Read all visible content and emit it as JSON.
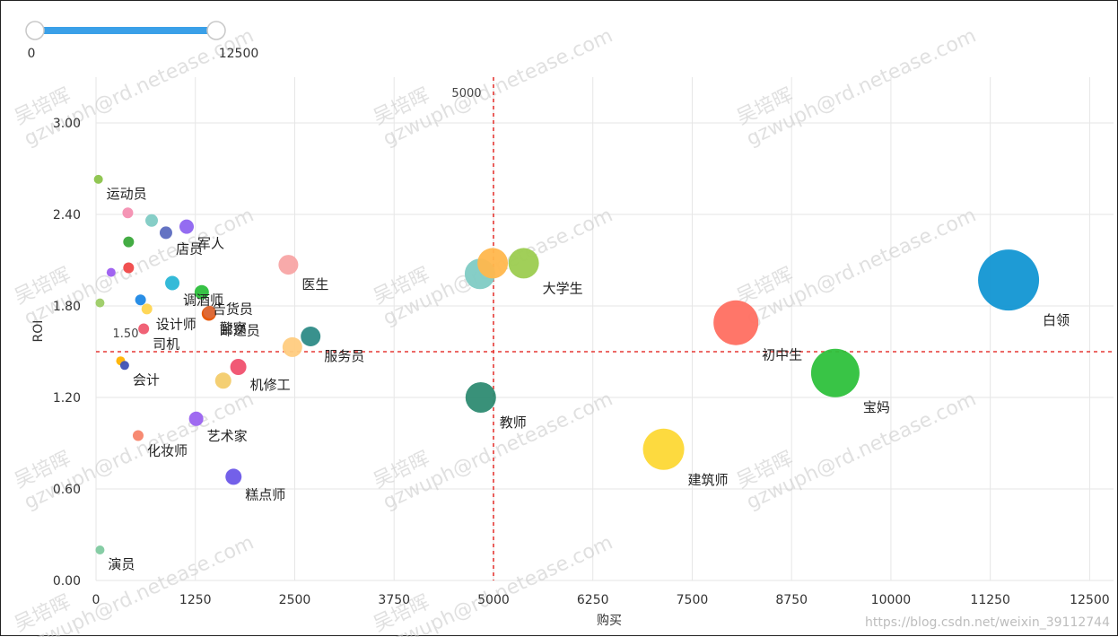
{
  "slider": {
    "min_label": "0",
    "max_label": "12500",
    "min": 0,
    "max": 12500,
    "low": 0,
    "high": 12500
  },
  "chart_data": {
    "type": "scatter",
    "title": "",
    "xlabel": "购买",
    "ylabel": "ROI",
    "xlim": [
      0,
      12800
    ],
    "ylim": [
      0,
      3.3
    ],
    "x_ticks": [
      0,
      1250,
      2500,
      3750,
      5000,
      6250,
      7500,
      8750,
      10000,
      11250,
      12500
    ],
    "y_ticks": [
      0.0,
      0.6,
      1.2,
      1.8,
      2.4,
      3.0
    ],
    "y_tick_labels": [
      "0.00",
      "0.60",
      "1.20",
      "1.80",
      "2.40",
      "3.00"
    ],
    "grid": true,
    "reference_lines": {
      "x": 5000,
      "x_label": "5000",
      "y": 1.5,
      "y_label": "1.50"
    },
    "points": [
      {
        "name": "运动员",
        "x": 30,
        "y": 2.63,
        "size": 5,
        "color": "#8bc34a",
        "labeled": true
      },
      {
        "name": "",
        "x": 400,
        "y": 2.41,
        "size": 6,
        "color": "#f48fb1",
        "labeled": false
      },
      {
        "name": "",
        "x": 700,
        "y": 2.36,
        "size": 7,
        "color": "#80cbc4",
        "labeled": false
      },
      {
        "name": "店员",
        "x": 880,
        "y": 2.28,
        "size": 7,
        "color": "#5c6bc0",
        "labeled": true
      },
      {
        "name": "军人",
        "x": 1140,
        "y": 2.32,
        "size": 8,
        "color": "#8e64f0",
        "labeled": true
      },
      {
        "name": "",
        "x": 410,
        "y": 2.22,
        "size": 6,
        "color": "#3aa83a",
        "labeled": false
      },
      {
        "name": "",
        "x": 410,
        "y": 2.05,
        "size": 6,
        "color": "#f04848",
        "labeled": false
      },
      {
        "name": "",
        "x": 190,
        "y": 2.02,
        "size": 5,
        "color": "#9c5cf0",
        "labeled": false
      },
      {
        "name": "调酒师",
        "x": 960,
        "y": 1.95,
        "size": 8,
        "color": "#29b6d6",
        "labeled": true
      },
      {
        "name": "告货员",
        "x": 1330,
        "y": 1.89,
        "size": 8,
        "color": "#2cbf3c",
        "labeled": true
      },
      {
        "name": "",
        "x": 50,
        "y": 1.82,
        "size": 5,
        "color": "#9ccc65",
        "labeled": false
      },
      {
        "name": "",
        "x": 560,
        "y": 1.84,
        "size": 6,
        "color": "#1e88e5",
        "labeled": false
      },
      {
        "name": "设计师",
        "x": 640,
        "y": 1.78,
        "size": 6,
        "color": "#ffd54f",
        "labeled": true
      },
      {
        "name": "邮递员",
        "x": 1420,
        "y": 1.75,
        "size": 8,
        "color": "#e65100",
        "labeled": true
      },
      {
        "name": "司机",
        "x": 600,
        "y": 1.65,
        "size": 6,
        "color": "#ef5a6f",
        "labeled": true
      },
      {
        "name": "警察",
        "x": 1430,
        "y": 1.76,
        "size": 7,
        "color": "#dd6b3a",
        "labeled": true
      },
      {
        "name": "医生",
        "x": 2420,
        "y": 2.07,
        "size": 11,
        "color": "#f8a5a5",
        "labeled": true
      },
      {
        "name": "服务员",
        "x": 2700,
        "y": 1.6,
        "size": 11,
        "color": "#2e8b87",
        "labeled": true
      },
      {
        "name": "",
        "x": 2470,
        "y": 1.53,
        "size": 11,
        "color": "#ffcc80",
        "labeled": false
      },
      {
        "name": "",
        "x": 310,
        "y": 1.44,
        "size": 5,
        "color": "#ffb300",
        "labeled": false
      },
      {
        "name": "会计",
        "x": 360,
        "y": 1.41,
        "size": 5,
        "color": "#3f51b5",
        "labeled": true
      },
      {
        "name": "机修工",
        "x": 1790,
        "y": 1.4,
        "size": 9,
        "color": "#f0506e",
        "labeled": true
      },
      {
        "name": "",
        "x": 1600,
        "y": 1.31,
        "size": 9,
        "color": "#f3cc6c",
        "labeled": false
      },
      {
        "name": "艺术家",
        "x": 1260,
        "y": 1.06,
        "size": 8,
        "color": "#9a62f0",
        "labeled": true
      },
      {
        "name": "化妆师",
        "x": 530,
        "y": 0.95,
        "size": 6,
        "color": "#f7846a",
        "labeled": true
      },
      {
        "name": "糕点师",
        "x": 1730,
        "y": 0.68,
        "size": 9,
        "color": "#6c57e8",
        "labeled": true
      },
      {
        "name": "演员",
        "x": 50,
        "y": 0.2,
        "size": 5,
        "color": "#7fcaa0",
        "labeled": true
      },
      {
        "name": "",
        "x": 4830,
        "y": 2.01,
        "size": 17,
        "color": "#80cbc4",
        "labeled": false
      },
      {
        "name": "",
        "x": 4990,
        "y": 2.08,
        "size": 17,
        "color": "#ffb74d",
        "labeled": false
      },
      {
        "name": "大学生",
        "x": 5380,
        "y": 2.08,
        "size": 17,
        "color": "#9ccc50",
        "labeled": true
      },
      {
        "name": "教师",
        "x": 4840,
        "y": 1.2,
        "size": 17,
        "color": "#2e8b72",
        "labeled": true
      },
      {
        "name": "建筑师",
        "x": 7140,
        "y": 0.86,
        "size": 23,
        "color": "#fdd835",
        "labeled": true
      },
      {
        "name": "初中生",
        "x": 8050,
        "y": 1.69,
        "size": 25,
        "color": "#ff6f61",
        "labeled": true
      },
      {
        "name": "宝妈",
        "x": 9300,
        "y": 1.36,
        "size": 27,
        "color": "#2ec13c",
        "labeled": true
      },
      {
        "name": "白领",
        "x": 11480,
        "y": 1.97,
        "size": 34,
        "color": "#1296d3",
        "labeled": true
      }
    ]
  },
  "watermark": {
    "text_name": "吴培晖",
    "text_email": "gzwuph@rd.netease.com"
  },
  "credit": "https://blog.csdn.net/weixin_39112744",
  "colors": {
    "slider_track": "#3aa0e8",
    "grid": "#e6e6e6",
    "ref_line": "#e53935"
  }
}
